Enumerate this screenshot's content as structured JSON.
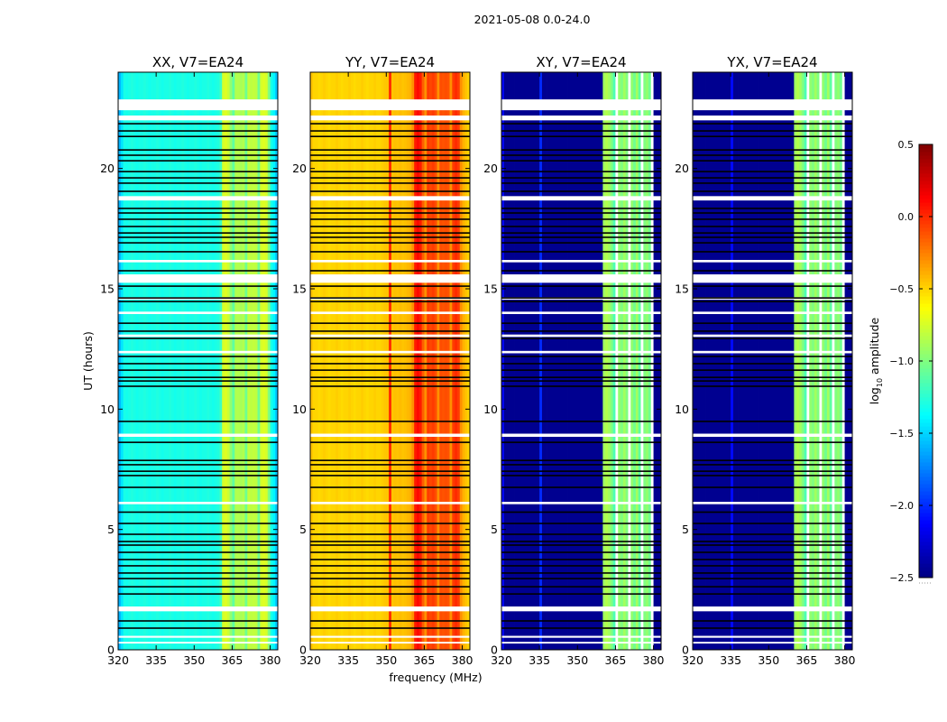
{
  "chart_data": {
    "type": "heatmap",
    "suptitle": "2021-05-08 0.0-24.0",
    "xlabel": "frequency (MHz)",
    "ylabel": "UT (hours)",
    "xlim": [
      320,
      383
    ],
    "ylim": [
      0,
      24
    ],
    "xticks": [
      "320",
      "335",
      "350",
      "365",
      "380"
    ],
    "xtick_values": [
      320,
      335,
      350,
      365,
      380
    ],
    "yticks": [
      "0",
      "5",
      "10",
      "15",
      "20"
    ],
    "ytick_values": [
      0,
      5,
      10,
      15,
      20
    ],
    "frequency_bin_start_mhz": 320,
    "frequency_bin_width_mhz": 1,
    "panels": [
      {
        "title": "XX, V7=EA24",
        "show_ylabels": true,
        "spectrum_log10_amp": [
          -1.6,
          -1.45,
          -1.3,
          -1.32,
          -1.3,
          -1.28,
          -1.3,
          -1.32,
          -1.3,
          -1.3,
          -1.28,
          -1.3,
          -1.32,
          -1.3,
          -1.3,
          -1.28,
          -1.3,
          -1.32,
          -1.3,
          -1.3,
          -1.28,
          -1.3,
          -1.32,
          -1.3,
          -1.3,
          -1.28,
          -1.3,
          -1.32,
          -1.3,
          -1.3,
          -1.28,
          -1.3,
          -1.32,
          -1.3,
          -1.3,
          -1.28,
          -1.3,
          -1.32,
          -1.3,
          -1.28,
          -1.2,
          -0.75,
          -0.72,
          -0.78,
          -0.95,
          -1.1,
          -0.85,
          -0.85,
          -0.88,
          -0.85,
          -1.05,
          -0.8,
          -0.82,
          -0.8,
          -0.82,
          -1.05,
          -0.75,
          -0.72,
          -0.75,
          -1.0,
          -1.3,
          -1.4,
          -1.55
        ]
      },
      {
        "title": "YY, V7=EA24",
        "show_ylabels": true,
        "spectrum_log10_amp": [
          -0.45,
          -0.5,
          -0.5,
          -0.52,
          -0.5,
          -0.48,
          -0.5,
          -0.52,
          -0.5,
          -0.5,
          -0.48,
          -0.5,
          -0.52,
          -0.5,
          -0.5,
          -0.48,
          -0.5,
          -0.52,
          -0.5,
          -0.5,
          -0.48,
          -0.5,
          -0.52,
          -0.5,
          -0.5,
          -0.48,
          -0.5,
          -0.5,
          -0.48,
          -0.46,
          -0.45,
          0.0,
          -0.45,
          -0.44,
          -0.45,
          -0.43,
          -0.45,
          -0.44,
          -0.42,
          -0.4,
          -0.3,
          0.05,
          0.1,
          0.05,
          -0.15,
          -0.3,
          -0.05,
          -0.08,
          -0.05,
          -0.1,
          -0.3,
          -0.1,
          -0.12,
          -0.1,
          -0.12,
          -0.3,
          -0.05,
          0.0,
          -0.05,
          -0.3,
          -0.4,
          -0.45,
          -0.5
        ]
      },
      {
        "title": "XY, V7=EA24",
        "show_ylabels": true,
        "spectrum_log10_amp": [
          -2.1,
          -2.45,
          -2.45,
          -2.45,
          -2.45,
          -2.45,
          -2.45,
          -2.45,
          -2.45,
          -2.45,
          -2.45,
          -2.45,
          -2.45,
          -2.45,
          -2.45,
          -2.0,
          -2.45,
          -2.45,
          -2.45,
          -2.45,
          -2.45,
          -2.45,
          -2.45,
          -2.45,
          -2.45,
          -2.45,
          -2.45,
          -2.45,
          -2.45,
          -2.45,
          -2.45,
          -2.45,
          -2.45,
          -2.45,
          -2.45,
          -2.45,
          -2.45,
          -2.45,
          -2.45,
          -2.45,
          -0.9,
          -0.85,
          -0.9,
          -1.0,
          -1.15,
          null,
          -0.95,
          -1.0,
          -0.9,
          -1.0,
          null,
          -0.95,
          -1.05,
          -0.9,
          -1.1,
          null,
          -1.0,
          -0.95,
          -1.05,
          null,
          -2.45,
          -2.45,
          -2.45
        ]
      },
      {
        "title": "YX, V7=EA24",
        "show_ylabels": true,
        "spectrum_log10_amp": [
          -2.45,
          -2.45,
          -2.45,
          -2.45,
          -2.45,
          -2.45,
          -2.45,
          -2.45,
          -2.45,
          -2.45,
          -2.45,
          -2.45,
          -2.45,
          -2.45,
          -2.45,
          -2.1,
          -2.45,
          -2.45,
          -2.45,
          -2.45,
          -2.45,
          -2.45,
          -2.45,
          -2.45,
          -2.45,
          -2.45,
          -2.45,
          -2.45,
          -2.45,
          -2.45,
          -2.45,
          -2.45,
          -2.45,
          -2.45,
          -2.45,
          -2.45,
          -2.45,
          -2.45,
          -2.45,
          -2.45,
          -0.9,
          -0.85,
          -0.9,
          -1.0,
          -1.15,
          null,
          -0.95,
          -1.0,
          -0.9,
          -1.0,
          null,
          -0.95,
          -1.05,
          -0.9,
          -1.1,
          null,
          -1.0,
          -0.95,
          -1.05,
          null,
          -2.45,
          -2.45,
          -2.45
        ]
      }
    ],
    "flagged_white_hours": [
      [
        22.42,
        22.87
      ],
      [
        22.0,
        22.2
      ],
      [
        18.67,
        18.85
      ],
      [
        16.1,
        16.2
      ],
      [
        15.25,
        15.6
      ],
      [
        14.55,
        14.65
      ],
      [
        13.95,
        14.05
      ],
      [
        13.0,
        13.1
      ],
      [
        12.32,
        12.42
      ],
      [
        8.85,
        8.98
      ],
      [
        6.05,
        6.15
      ],
      [
        1.6,
        1.8
      ],
      [
        0.5,
        0.58
      ],
      [
        0.26,
        0.33
      ]
    ],
    "black_line_hours": [
      21.86,
      21.56,
      21.33,
      20.77,
      20.55,
      20.32,
      19.87,
      19.61,
      19.39,
      19.05,
      18.34,
      18.15,
      17.89,
      17.59,
      17.32,
      17.14,
      16.91,
      16.54,
      15.75,
      15.11,
      14.62,
      14.47,
      13.57,
      13.24,
      12.94,
      12.19,
      11.89,
      11.62,
      11.32,
      11.17,
      10.95,
      9.49,
      8.62,
      7.87,
      7.69,
      7.42,
      7.24,
      6.75,
      5.72,
      5.25,
      4.8,
      4.5,
      4.35,
      4.05,
      3.75,
      3.49,
      3.19,
      2.96,
      2.62,
      2.32,
      1.2,
      0.9
    ],
    "colorbar": {
      "label": "log10 amplitude",
      "label_main": "log",
      "label_sub": "10",
      "label_rest": " amplitude",
      "range": [
        -2.5,
        0.5
      ],
      "ticks": [
        "0.5",
        "0.0",
        "−0.5",
        "−1.0",
        "−1.5",
        "−2.0",
        "−2.5"
      ],
      "tick_values": [
        0.5,
        0.0,
        -0.5,
        -1.0,
        -1.5,
        -2.0,
        -2.5
      ],
      "colormap": "jet"
    }
  }
}
